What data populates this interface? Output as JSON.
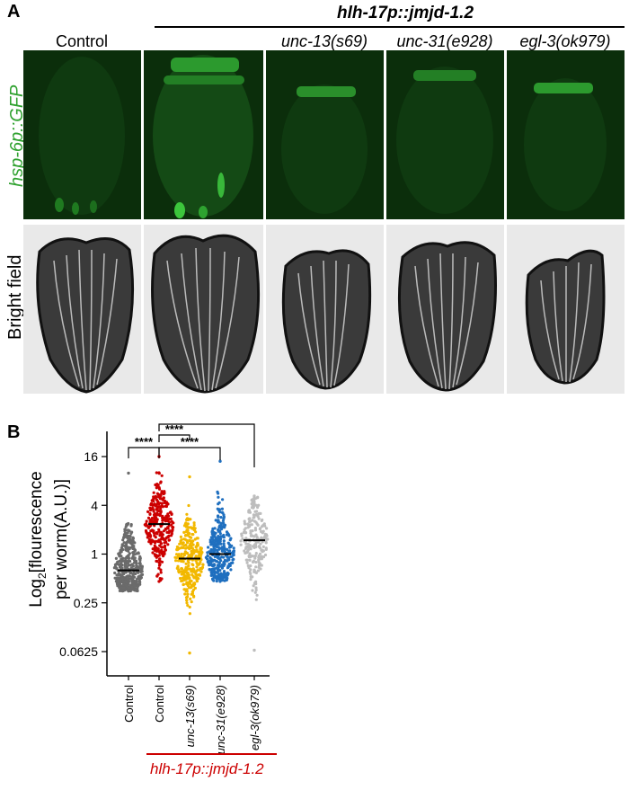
{
  "panel_a": {
    "letter": "A",
    "group_header": "hlh-17p::jmjd-1.2",
    "columns": [
      "Control",
      "",
      "unc-13(s69)",
      "unc-31(e928)",
      "egl-3(ok979)"
    ],
    "rows": [
      "hsp-6p::GFP",
      "Bright field"
    ],
    "colors": {
      "gfp_bg": "#0b2e0b",
      "gfp_signal": "#3cc63c",
      "gfp_label": "#2fa12f"
    }
  },
  "panel_b": {
    "letter": "B",
    "group_label": "hlh-17p::jmjd-1.2",
    "significance": "****",
    "colors": {
      "group_bar": "#cc0000"
    }
  },
  "chart_data": {
    "type": "scatter",
    "ylabel_line1": "Log",
    "ylabel_sub": "2",
    "ylabel_line1_rest": "[flourescence",
    "ylabel_line2": "per worm(A.U.)]",
    "y_scale": "log2",
    "ylim": [
      0.04,
      32
    ],
    "yticks": [
      16,
      4,
      1,
      0.25,
      0.0625
    ],
    "ytick_labels": [
      "16",
      "4",
      "1",
      "0.25",
      "0.0625"
    ],
    "categories": [
      "Control",
      "Control",
      "unc-13(s69)",
      "unc-31(e928)",
      "egl-3(ok979)"
    ],
    "series": [
      {
        "color": "#6b6b6b",
        "median": 0.63,
        "min": 0.35,
        "max": 10,
        "n": 900
      },
      {
        "color": "#cc0000",
        "median": 2.35,
        "min": 0.46,
        "max": 16,
        "n": 300
      },
      {
        "color": "#f2b800",
        "median": 0.88,
        "min": 0.06,
        "max": 9,
        "n": 300
      },
      {
        "color": "#1f6fbf",
        "median": 1.0,
        "min": 0.46,
        "max": 14,
        "n": 320
      },
      {
        "color": "#bdbdbd",
        "median": 1.48,
        "min": 0.065,
        "max": 5.2,
        "n": 220
      }
    ],
    "comparisons": [
      {
        "from": 0,
        "to": 1,
        "label": "****"
      },
      {
        "from": 1,
        "to": 2,
        "label": "****"
      },
      {
        "from": 1,
        "to": 3,
        "label": "****"
      },
      {
        "from": 1,
        "to": 4,
        "label": "****"
      }
    ]
  }
}
